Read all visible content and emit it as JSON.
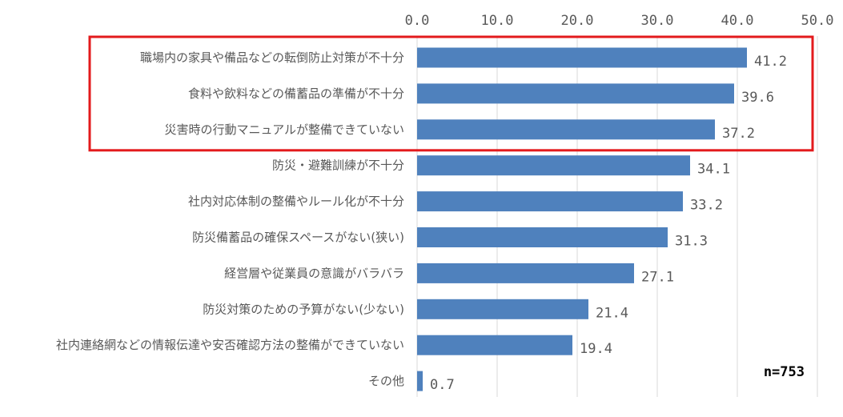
{
  "chart_data": {
    "type": "bar",
    "orientation": "horizontal",
    "categories": [
      "職場内の家具や備品などの転倒防止対策が不十分",
      "食料や飲料などの備蓄品の準備が不十分",
      "災害時の行動マニュアルが整備できていない",
      "防災・避難訓練が不十分",
      "社内対応体制の整備やルール化が不十分",
      "防災備蓄品の確保スペースがない(狭い)",
      "経営層や従業員の意識がバラバラ",
      "防災対策のための予算がない(少ない)",
      "社内連絡網などの情報伝達や安否確認方法の整備ができていない",
      "その他"
    ],
    "values": [
      41.2,
      39.6,
      37.2,
      34.1,
      33.2,
      31.3,
      27.1,
      21.4,
      19.4,
      0.7
    ],
    "value_labels": [
      "41.2",
      "39.6",
      "37.2",
      "34.1",
      "33.2",
      "31.3",
      "27.1",
      "21.4",
      "19.4",
      "0.7"
    ],
    "xlim": [
      0,
      50
    ],
    "ticks": [
      "0.0",
      "10.0",
      "20.0",
      "30.0",
      "40.0",
      "50.0"
    ],
    "tick_values": [
      0,
      10,
      20,
      30,
      40,
      50
    ],
    "grid": true,
    "bar_color": "#4f81bd",
    "highlighted_categories": [
      0,
      1,
      2
    ],
    "highlight_color": "#e31a1c",
    "note": "n=753"
  }
}
